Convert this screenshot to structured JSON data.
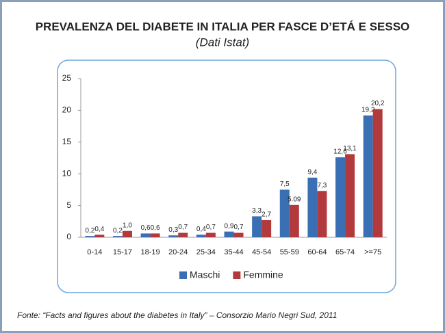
{
  "chart_data": {
    "type": "bar",
    "title": "PREVALENZA DEL DIABETE IN ITALIA PER FASCE D’ETÁ E SESSO",
    "subtitle": "(Dati Istat)",
    "source": "Fonte: “Facts and figures about the diabetes in Italy” – Consorzio Mario Negri Sud, 2011",
    "categories": [
      "0-14",
      "15-17",
      "18-19",
      "20-24",
      "25-34",
      "35-44",
      "45-54",
      "55-59",
      "60-64",
      "65-74",
      ">=75"
    ],
    "series": [
      {
        "name": "Maschi",
        "color": "#3b6fb3",
        "values": [
          0.2,
          0.2,
          0.6,
          0.3,
          0.4,
          0.9,
          3.3,
          7.5,
          9.4,
          12.6,
          19.2
        ],
        "value_labels": [
          "0,2",
          "0,2",
          "0,6",
          "0,3",
          "0,4",
          "0,9",
          "3,3",
          "7,5",
          "9,4",
          "12,6",
          "19,2"
        ]
      },
      {
        "name": "Femmine",
        "color": "#b23a3c",
        "values": [
          0.4,
          1.0,
          0.6,
          0.7,
          0.7,
          0.7,
          2.7,
          5.09,
          7.3,
          13.1,
          20.2
        ],
        "value_labels": [
          "0,4",
          "1,0",
          "0,6",
          "0,7",
          "0,7",
          "0,7",
          "2,7",
          "5.09",
          "7,3",
          "13,1",
          "20,2"
        ]
      }
    ],
    "ylim": [
      0,
      25
    ],
    "yticks": [
      0,
      5,
      10,
      15,
      20,
      25
    ],
    "grid": false,
    "legend": "bottom"
  }
}
